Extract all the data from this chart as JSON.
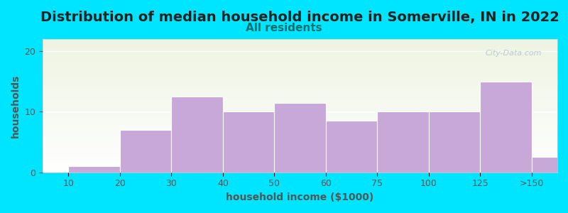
{
  "title": "Distribution of median household income in Somerville, IN in 2022",
  "subtitle": "All residents",
  "xlabel": "household income ($1000)",
  "ylabel": "households",
  "bar_labels": [
    "10",
    "20",
    "30",
    "40",
    "50",
    "60",
    "75",
    "100",
    "125",
    ">150"
  ],
  "values": [
    1,
    7,
    12.5,
    10,
    11.5,
    8.5,
    10,
    10,
    15,
    2.5
  ],
  "bar_left_edges": [
    0,
    1,
    2,
    3,
    4,
    5,
    6,
    7,
    8,
    9
  ],
  "bar_widths": [
    1,
    1,
    1,
    1,
    1,
    1,
    1,
    1,
    1,
    1
  ],
  "bar_color": "#c8a8d8",
  "bar_edge_color": "#ffffff",
  "ylim": [
    0,
    22
  ],
  "yticks": [
    0,
    10,
    20
  ],
  "background_outer": "#00e5ff",
  "plot_bg_gradient_top": "#eef4e2",
  "plot_bg_gradient_bottom": "#ffffff",
  "title_fontsize": 14,
  "subtitle_fontsize": 11,
  "title_color": "#222222",
  "subtitle_color": "#007070",
  "xlabel_fontsize": 10,
  "ylabel_fontsize": 10,
  "axis_label_color": "#555555",
  "watermark_text": "City-Data.com",
  "watermark_color": "#b8c4cc",
  "tick_fontsize": 9,
  "tick_color": "#555555"
}
